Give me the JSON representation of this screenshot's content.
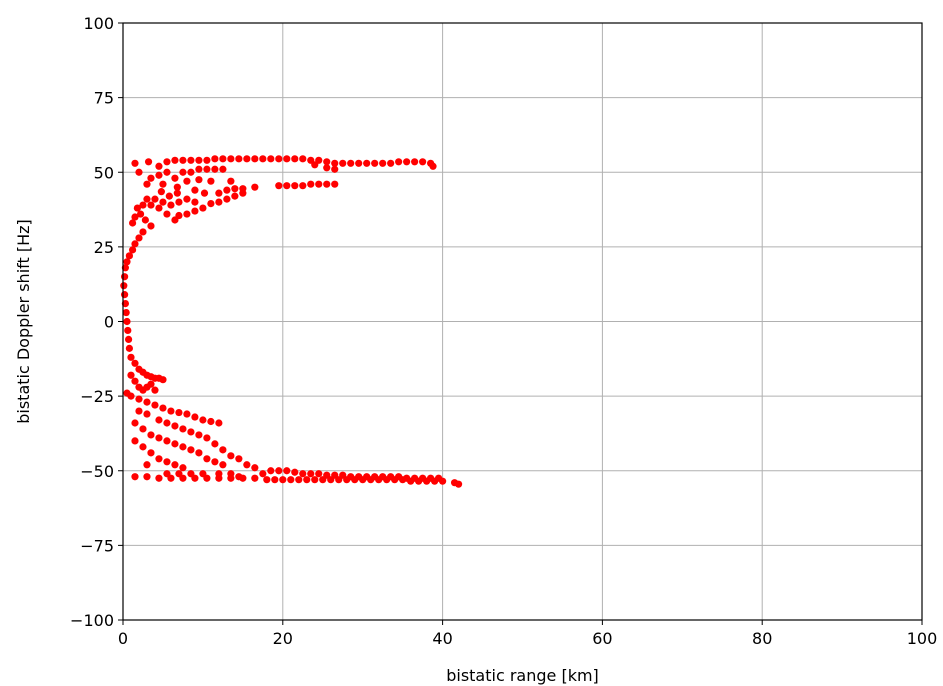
{
  "chart_data": {
    "type": "scatter",
    "xlabel": "bistatic range [km]",
    "ylabel": "bistatic Doppler shift [Hz]",
    "xlim": [
      0,
      100
    ],
    "ylim": [
      -100,
      100
    ],
    "xticks": [
      0,
      20,
      40,
      60,
      80,
      100
    ],
    "yticks": [
      -100,
      -75,
      -50,
      -25,
      0,
      25,
      50,
      75,
      100
    ],
    "xtick_labels": [
      "0",
      "20",
      "40",
      "60",
      "80",
      "100"
    ],
    "ytick_labels": [
      "−100",
      "−75",
      "−50",
      "−25",
      "0",
      "25",
      "50",
      "75",
      "100"
    ],
    "grid": true,
    "marker_color": "#ff0000",
    "series": [
      {
        "points": [
          [
            1.5,
            53
          ],
          [
            3.2,
            53.5
          ],
          [
            4.5,
            52
          ],
          [
            5.5,
            53.5
          ],
          [
            6.5,
            54
          ],
          [
            7.5,
            54
          ],
          [
            8.5,
            54
          ],
          [
            9.5,
            54
          ],
          [
            10.5,
            54
          ],
          [
            11.5,
            54.5
          ],
          [
            12.5,
            54.5
          ],
          [
            13.5,
            54.5
          ],
          [
            14.5,
            54.5
          ],
          [
            15.5,
            54.5
          ],
          [
            16.5,
            54.5
          ],
          [
            17.5,
            54.5
          ],
          [
            18.5,
            54.5
          ],
          [
            19.5,
            54.5
          ],
          [
            20.5,
            54.5
          ],
          [
            21.5,
            54.5
          ],
          [
            22.5,
            54.5
          ],
          [
            23.5,
            54
          ],
          [
            24.5,
            54
          ],
          [
            25.5,
            53.5
          ],
          [
            26.5,
            53
          ],
          [
            27.5,
            53
          ],
          [
            28.5,
            53
          ],
          [
            29.5,
            53
          ],
          [
            30.5,
            53
          ],
          [
            31.5,
            53
          ],
          [
            32.5,
            53
          ],
          [
            33.5,
            53
          ],
          [
            34.5,
            53.5
          ],
          [
            35.5,
            53.5
          ],
          [
            36.5,
            53.5
          ],
          [
            37.5,
            53.5
          ],
          [
            38.5,
            53
          ],
          [
            38.8,
            52
          ],
          [
            24.0,
            52.5
          ],
          [
            25.5,
            51.5
          ],
          [
            26.5,
            51
          ],
          [
            2.0,
            50
          ],
          [
            3.5,
            48
          ],
          [
            4.5,
            49
          ],
          [
            5.5,
            50
          ],
          [
            6.5,
            48
          ],
          [
            7.5,
            50
          ],
          [
            8.5,
            50
          ],
          [
            9.5,
            51
          ],
          [
            10.5,
            51
          ],
          [
            11.5,
            51
          ],
          [
            12.5,
            51
          ],
          [
            8.0,
            47
          ],
          [
            9.5,
            47.5
          ],
          [
            11.0,
            47
          ],
          [
            13.5,
            47
          ],
          [
            3.0,
            46
          ],
          [
            5.0,
            46
          ],
          [
            6.8,
            45
          ],
          [
            9.0,
            44
          ],
          [
            10.2,
            43
          ],
          [
            12.0,
            43
          ],
          [
            13.0,
            44
          ],
          [
            14.0,
            44.5
          ],
          [
            15.0,
            44.5
          ],
          [
            16.5,
            45
          ],
          [
            19.5,
            45.5
          ],
          [
            20.5,
            45.5
          ],
          [
            21.5,
            45.5
          ],
          [
            22.5,
            45.5
          ],
          [
            23.5,
            46
          ],
          [
            24.5,
            46
          ],
          [
            25.5,
            46
          ],
          [
            26.5,
            46
          ],
          [
            15.0,
            43
          ],
          [
            14.0,
            42
          ],
          [
            13.0,
            41
          ],
          [
            12.0,
            40
          ],
          [
            11.0,
            39.5
          ],
          [
            10.0,
            38
          ],
          [
            9.0,
            37
          ],
          [
            8.0,
            36
          ],
          [
            7.0,
            35.5
          ],
          [
            6.5,
            34
          ],
          [
            5.5,
            36
          ],
          [
            4.5,
            38
          ],
          [
            3.5,
            39
          ],
          [
            2.5,
            39
          ],
          [
            1.8,
            38
          ],
          [
            2.2,
            36
          ],
          [
            2.8,
            34
          ],
          [
            3.5,
            32
          ],
          [
            1.5,
            35
          ],
          [
            1.2,
            33
          ],
          [
            4.0,
            41
          ],
          [
            5.0,
            40
          ],
          [
            6.0,
            39
          ],
          [
            7.0,
            40
          ],
          [
            8.0,
            41
          ],
          [
            9.0,
            40
          ],
          [
            5.8,
            42
          ],
          [
            6.8,
            43
          ],
          [
            4.8,
            43.5
          ],
          [
            3.0,
            41
          ],
          [
            2.5,
            30
          ],
          [
            2.0,
            28
          ],
          [
            1.5,
            26
          ],
          [
            1.2,
            24
          ],
          [
            0.8,
            22
          ],
          [
            0.5,
            20
          ],
          [
            0.3,
            18
          ],
          [
            0.2,
            15
          ],
          [
            0.1,
            12
          ],
          [
            0.2,
            9
          ],
          [
            0.3,
            6
          ],
          [
            0.4,
            3
          ],
          [
            0.5,
            0
          ],
          [
            0.6,
            -3
          ],
          [
            0.7,
            -6
          ],
          [
            0.8,
            -9
          ],
          [
            1.0,
            -12
          ],
          [
            1.5,
            -14
          ],
          [
            2.0,
            -16
          ],
          [
            2.5,
            -17
          ],
          [
            3.0,
            -18
          ],
          [
            3.5,
            -18.5
          ],
          [
            4.0,
            -19
          ],
          [
            4.5,
            -19
          ],
          [
            5.0,
            -19.5
          ],
          [
            1.0,
            -18
          ],
          [
            1.5,
            -20
          ],
          [
            2.0,
            -22
          ],
          [
            2.5,
            -23
          ],
          [
            3.0,
            -22
          ],
          [
            3.5,
            -21
          ],
          [
            4.0,
            -23
          ],
          [
            0.5,
            -24
          ],
          [
            1.0,
            -25
          ],
          [
            2.0,
            -26
          ],
          [
            3.0,
            -27
          ],
          [
            4.0,
            -28
          ],
          [
            5.0,
            -29
          ],
          [
            6.0,
            -30
          ],
          [
            7.0,
            -30.5
          ],
          [
            8.0,
            -31
          ],
          [
            9.0,
            -32
          ],
          [
            10.0,
            -33
          ],
          [
            11.0,
            -33.5
          ],
          [
            12.0,
            -34
          ],
          [
            2.0,
            -30
          ],
          [
            3.0,
            -31
          ],
          [
            4.5,
            -33
          ],
          [
            5.5,
            -34
          ],
          [
            6.5,
            -35
          ],
          [
            7.5,
            -36
          ],
          [
            8.5,
            -37
          ],
          [
            9.5,
            -38
          ],
          [
            10.5,
            -39
          ],
          [
            11.5,
            -41
          ],
          [
            12.5,
            -43
          ],
          [
            13.5,
            -45
          ],
          [
            14.5,
            -46
          ],
          [
            15.5,
            -48
          ],
          [
            16.5,
            -49
          ],
          [
            1.5,
            -34
          ],
          [
            2.5,
            -36
          ],
          [
            3.5,
            -38
          ],
          [
            4.5,
            -39
          ],
          [
            5.5,
            -40
          ],
          [
            6.5,
            -41
          ],
          [
            7.5,
            -42
          ],
          [
            8.5,
            -43
          ],
          [
            9.5,
            -44
          ],
          [
            10.5,
            -46
          ],
          [
            11.5,
            -47
          ],
          [
            12.5,
            -48
          ],
          [
            1.5,
            -40
          ],
          [
            2.5,
            -42
          ],
          [
            3.5,
            -44
          ],
          [
            4.5,
            -46
          ],
          [
            5.5,
            -47
          ],
          [
            6.5,
            -48
          ],
          [
            7.5,
            -49
          ],
          [
            3.0,
            -48
          ],
          [
            5.5,
            -51
          ],
          [
            7.0,
            -51
          ],
          [
            8.5,
            -51
          ],
          [
            10.0,
            -51
          ],
          [
            12.0,
            -51
          ],
          [
            13.5,
            -51
          ],
          [
            14.5,
            -52
          ],
          [
            1.5,
            -52
          ],
          [
            3.0,
            -52
          ],
          [
            4.5,
            -52.5
          ],
          [
            6.0,
            -52.5
          ],
          [
            7.5,
            -52.5
          ],
          [
            9.0,
            -52.5
          ],
          [
            10.5,
            -52.5
          ],
          [
            12.0,
            -52.5
          ],
          [
            13.5,
            -52.5
          ],
          [
            15.0,
            -52.5
          ],
          [
            16.5,
            -52.5
          ],
          [
            17.5,
            -51
          ],
          [
            18.5,
            -50
          ],
          [
            19.5,
            -50
          ],
          [
            20.5,
            -50
          ],
          [
            21.5,
            -50.5
          ],
          [
            22.5,
            -51
          ],
          [
            23.5,
            -51
          ],
          [
            24.5,
            -51
          ],
          [
            25.5,
            -51.5
          ],
          [
            26.5,
            -51.5
          ],
          [
            27.5,
            -51.5
          ],
          [
            28.5,
            -52
          ],
          [
            29.5,
            -52
          ],
          [
            30.5,
            -52
          ],
          [
            31.5,
            -52
          ],
          [
            32.5,
            -52
          ],
          [
            33.5,
            -52
          ],
          [
            34.5,
            -52
          ],
          [
            35.5,
            -52.5
          ],
          [
            36.5,
            -52.5
          ],
          [
            37.5,
            -52.5
          ],
          [
            38.5,
            -52.5
          ],
          [
            39.5,
            -52.5
          ],
          [
            18.0,
            -53
          ],
          [
            19.0,
            -53
          ],
          [
            20.0,
            -53
          ],
          [
            21.0,
            -53
          ],
          [
            22.0,
            -53
          ],
          [
            23.0,
            -53
          ],
          [
            24.0,
            -53
          ],
          [
            25.0,
            -53
          ],
          [
            26.0,
            -53
          ],
          [
            27.0,
            -53
          ],
          [
            28.0,
            -53
          ],
          [
            29.0,
            -53
          ],
          [
            30.0,
            -53
          ],
          [
            31.0,
            -53
          ],
          [
            32.0,
            -53
          ],
          [
            33.0,
            -53
          ],
          [
            34.0,
            -53
          ],
          [
            35.0,
            -53
          ],
          [
            36.0,
            -53.5
          ],
          [
            37.0,
            -53.5
          ],
          [
            38.0,
            -53.5
          ],
          [
            39.0,
            -53.5
          ],
          [
            40.0,
            -53.5
          ],
          [
            41.5,
            -54
          ],
          [
            42.0,
            -54.5
          ]
        ]
      }
    ]
  }
}
